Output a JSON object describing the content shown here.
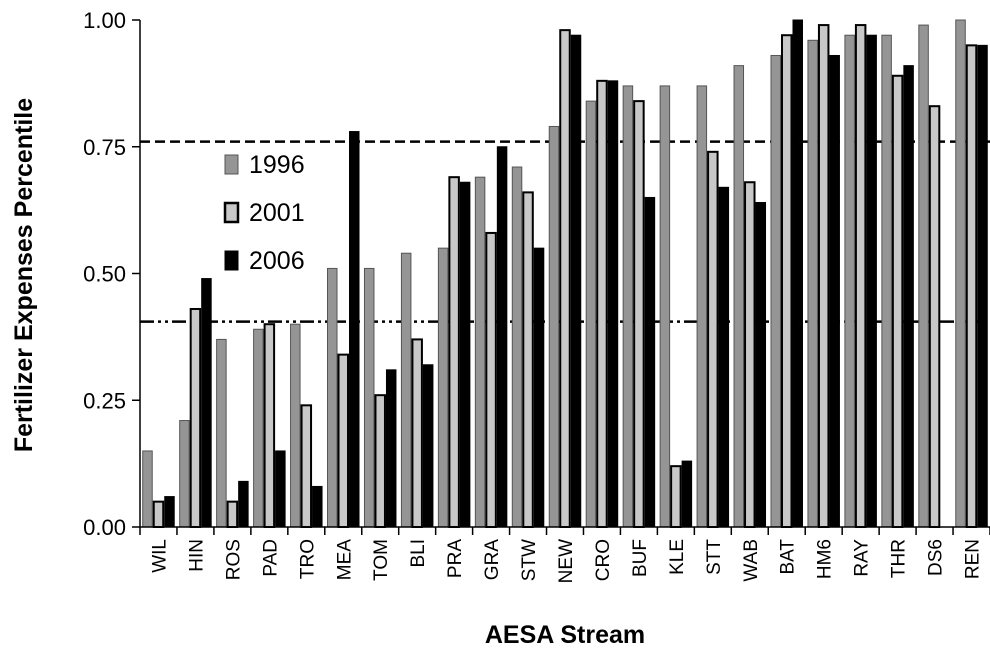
{
  "chart_data": {
    "type": "bar",
    "title": "",
    "xlabel": "AESA Stream",
    "ylabel": "Fertilizer Expenses Percentile",
    "ylim": [
      0,
      1
    ],
    "yticks": [
      "0.00",
      "0.25",
      "0.50",
      "0.75",
      "1.00"
    ],
    "ytick_values": [
      0,
      0.25,
      0.5,
      0.75,
      1
    ],
    "grid": false,
    "legend_position": "left-center",
    "categories": [
      "WIL",
      "HIN",
      "ROS",
      "PAD",
      "TRO",
      "MEA",
      "TOM",
      "BLI",
      "PRA",
      "GRA",
      "STW",
      "NEW",
      "CRO",
      "BUF",
      "KLE",
      "STT",
      "WAB",
      "BAT",
      "HM6",
      "RAY",
      "THR",
      "DS6",
      "REN"
    ],
    "series": [
      {
        "name": "1996",
        "color": "#959595",
        "border": "#555555",
        "values": [
          0.15,
          0.21,
          0.37,
          0.39,
          0.4,
          0.51,
          0.51,
          0.54,
          0.55,
          0.69,
          0.71,
          0.79,
          0.84,
          0.87,
          0.87,
          0.87,
          0.91,
          0.93,
          0.96,
          0.97,
          0.97,
          0.99,
          1.0
        ]
      },
      {
        "name": "2001",
        "color": "#c8c8c8",
        "border": "#000000",
        "values": [
          0.05,
          0.43,
          0.05,
          0.4,
          0.24,
          0.34,
          0.26,
          0.37,
          0.69,
          0.58,
          0.66,
          0.98,
          0.88,
          0.84,
          0.12,
          0.74,
          0.68,
          0.97,
          0.99,
          0.99,
          0.89,
          0.83,
          0.95
        ]
      },
      {
        "name": "2006",
        "color": "#000000",
        "border": "#000000",
        "values": [
          0.06,
          0.49,
          0.09,
          0.15,
          0.08,
          0.78,
          0.31,
          0.32,
          0.68,
          0.75,
          0.55,
          0.97,
          0.88,
          0.65,
          0.13,
          0.67,
          0.64,
          1.0,
          0.93,
          0.97,
          0.91,
          null,
          0.95
        ]
      }
    ],
    "reference_lines": [
      {
        "name": "upper-threshold",
        "style": "dashed",
        "value": 0.76
      },
      {
        "name": "lower-threshold",
        "style": "dash-dot",
        "value": 0.405
      }
    ]
  }
}
